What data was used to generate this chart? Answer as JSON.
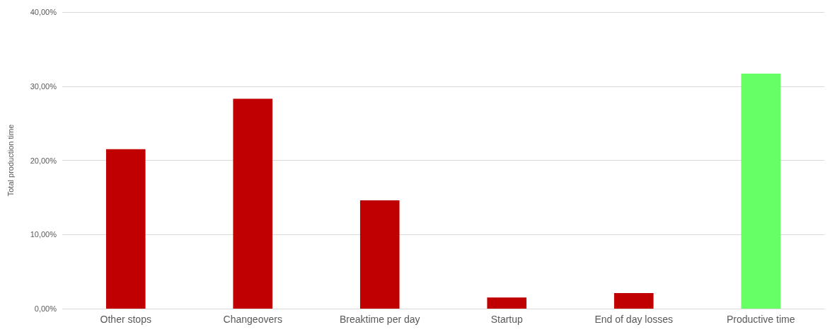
{
  "chart_data": {
    "type": "bar",
    "ylabel": "Total production time",
    "categories": [
      "Other stops",
      "Changeovers",
      "Breaktime per day",
      "Startup",
      "End of day losses",
      "Productive time"
    ],
    "values": [
      21.5,
      28.3,
      14.6,
      1.5,
      2.1,
      31.7
    ],
    "colors": [
      "#c00000",
      "#c00000",
      "#c00000",
      "#c00000",
      "#c00000",
      "#66ff66"
    ],
    "ylim": [
      0,
      40
    ],
    "yticks": [
      {
        "value": 0,
        "label": "0,00%"
      },
      {
        "value": 10,
        "label": "10,00%"
      },
      {
        "value": 20,
        "label": "20,00%"
      },
      {
        "value": 30,
        "label": "30,00%"
      },
      {
        "value": 40,
        "label": "40,00%"
      }
    ],
    "grid": "y"
  }
}
